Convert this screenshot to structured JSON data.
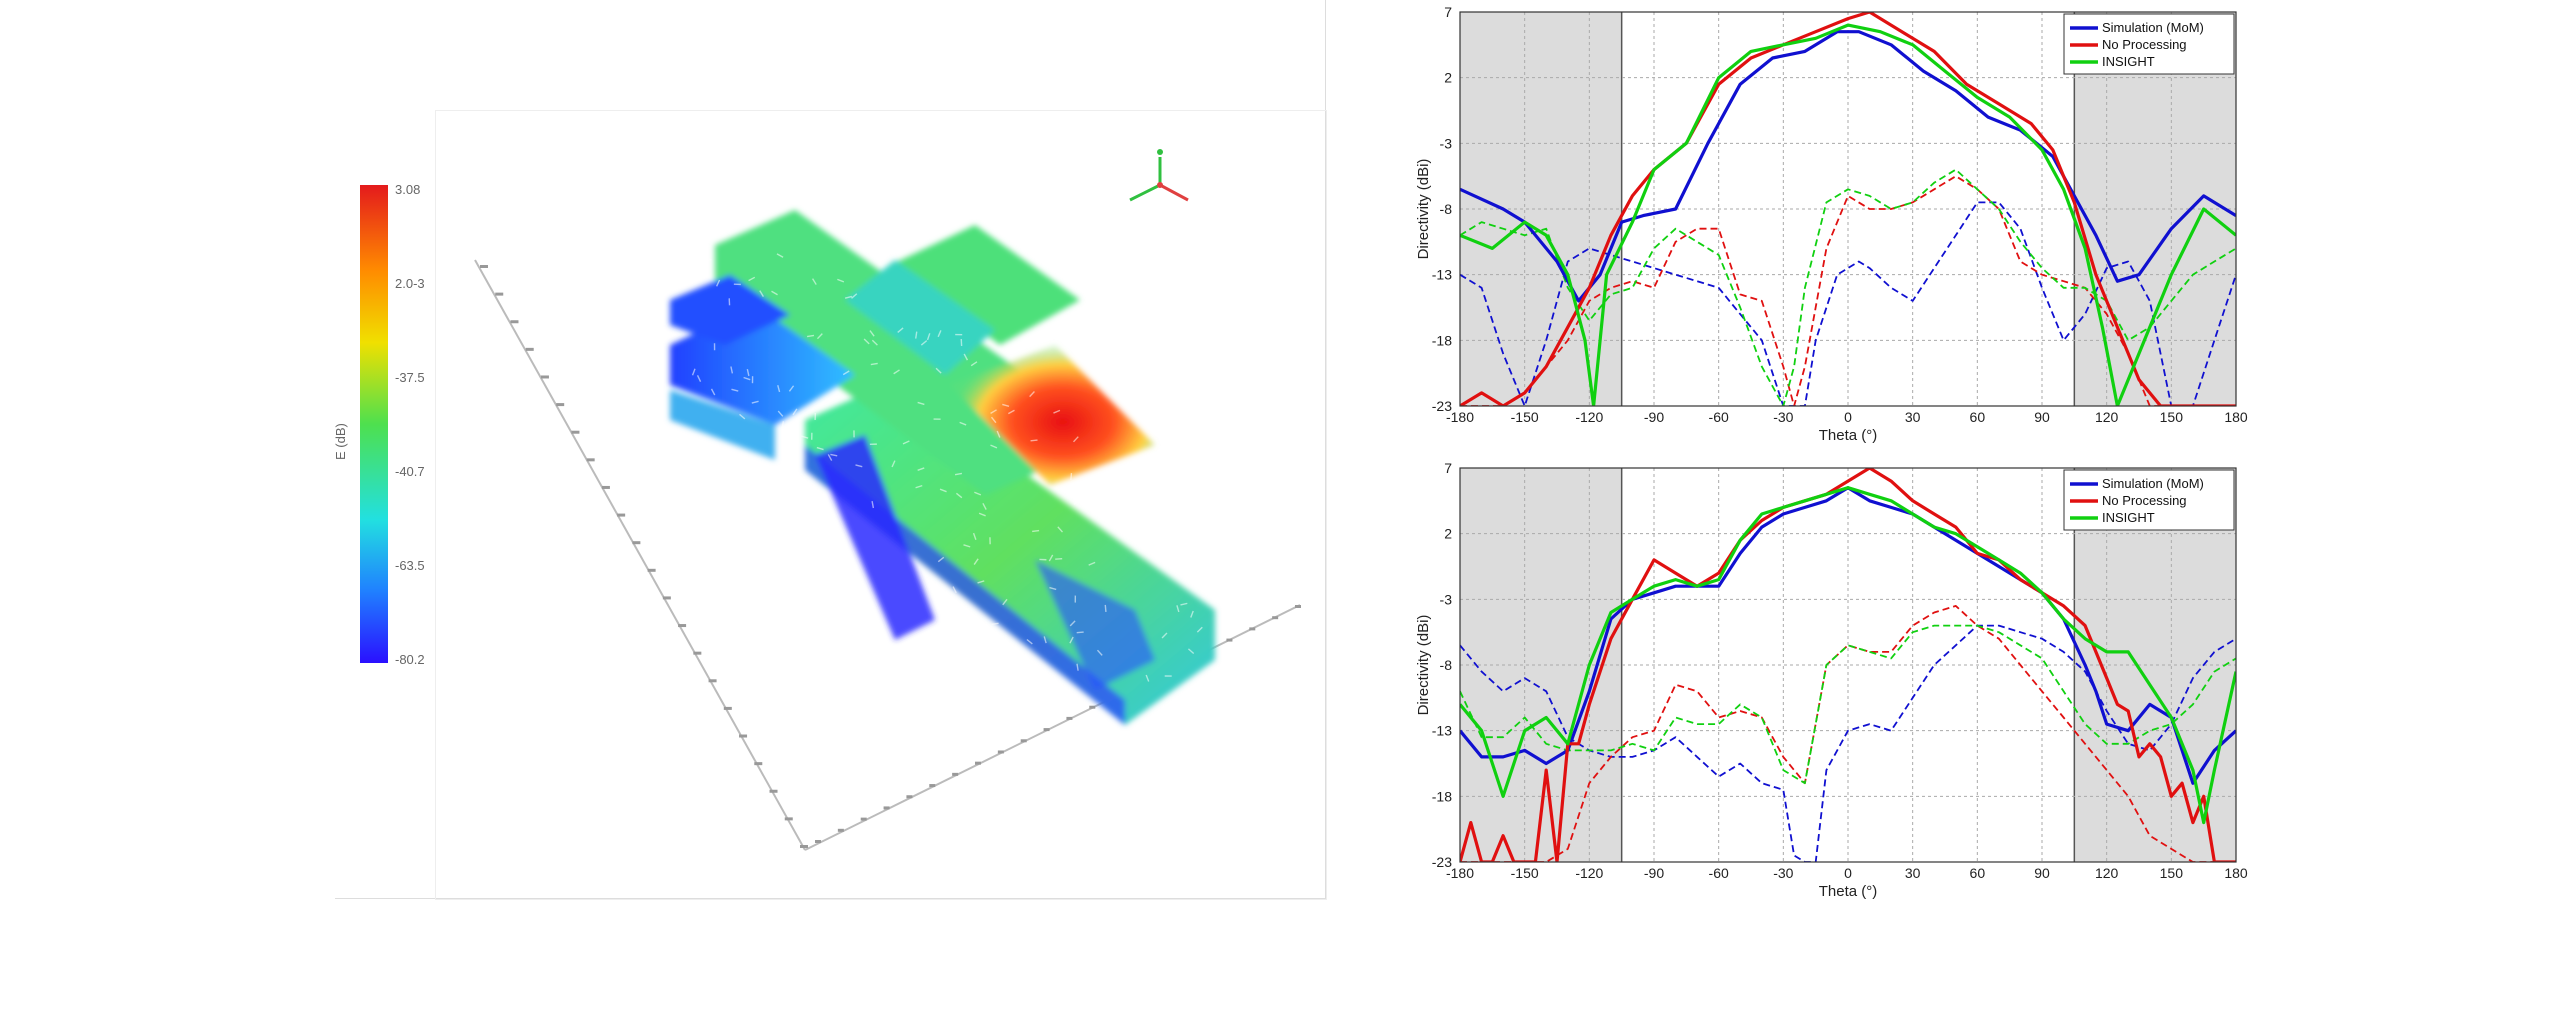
{
  "colorbar": {
    "labels": [
      "3.08",
      "2.0-3",
      "-37.5",
      "-40.7",
      "-63.5",
      "-80.2"
    ],
    "side_label": "E (dB)",
    "colors": [
      "#d7191c",
      "#fdae61",
      "#a6d96a",
      "#1de9b6",
      "#2b83ba",
      "#2020ff"
    ]
  },
  "icons": {
    "axes_triad": "xyz-axes-icon"
  },
  "chart_data": [
    {
      "type": "line",
      "title": "",
      "xlabel": "Theta (°)",
      "ylabel": "Directivity (dBi)",
      "xlim": [
        -180,
        180
      ],
      "ylim": [
        -23,
        7
      ],
      "xticks": [
        -180,
        -150,
        -120,
        -90,
        -60,
        -30,
        0,
        30,
        60,
        90,
        120,
        150,
        180
      ],
      "yticks": [
        7,
        2,
        -3,
        -8,
        -13,
        -18,
        -23
      ],
      "grid": true,
      "legend_position": "top-right",
      "shaded_regions": [
        [
          -180,
          -105
        ],
        [
          105,
          180
        ]
      ],
      "legend": [
        "Simulation (MoM)",
        "No Processing",
        "INSIGHT"
      ],
      "series": [
        {
          "name": "Simulation (MoM)",
          "style": "solid",
          "color": "#1010d0",
          "x": [
            -180,
            -160,
            -150,
            -135,
            -125,
            -115,
            -105,
            -95,
            -80,
            -65,
            -50,
            -35,
            -20,
            -5,
            5,
            20,
            35,
            50,
            65,
            80,
            95,
            105,
            115,
            125,
            135,
            150,
            165,
            180
          ],
          "y": [
            -6.5,
            -8,
            -9,
            -12,
            -15,
            -13,
            -9,
            -8.5,
            -8,
            -3,
            1.5,
            3.5,
            4,
            5.5,
            5.5,
            4.5,
            2.5,
            1,
            -1,
            -2,
            -4,
            -7,
            -10,
            -13.5,
            -13,
            -9.5,
            -7,
            -8.5
          ]
        },
        {
          "name": "No Processing",
          "style": "solid",
          "color": "#e01010",
          "x": [
            -180,
            -170,
            -160,
            -150,
            -140,
            -130,
            -120,
            -110,
            -100,
            -90,
            -75,
            -60,
            -45,
            -30,
            -15,
            0,
            10,
            25,
            40,
            55,
            70,
            85,
            95,
            105,
            115,
            125,
            135,
            145,
            155,
            165,
            180
          ],
          "y": [
            -23,
            -22,
            -23,
            -22,
            -20,
            -17,
            -14,
            -10,
            -7,
            -5,
            -3,
            1.5,
            3.5,
            4.5,
            5.5,
            6.5,
            7,
            5.5,
            4,
            1.5,
            0,
            -1.5,
            -3.5,
            -7.5,
            -13,
            -17,
            -21,
            -23,
            -23,
            -23,
            -23
          ]
        },
        {
          "name": "INSIGHT",
          "style": "solid",
          "color": "#10d010",
          "x": [
            -180,
            -165,
            -150,
            -140,
            -130,
            -122,
            -118,
            -112,
            -100,
            -90,
            -75,
            -60,
            -45,
            -30,
            -15,
            0,
            15,
            30,
            45,
            60,
            75,
            90,
            100,
            110,
            118,
            125,
            135,
            150,
            165,
            180
          ],
          "y": [
            -10,
            -11,
            -9,
            -10,
            -13,
            -18,
            -23,
            -13,
            -9,
            -5,
            -3,
            2,
            4,
            4.5,
            5,
            6,
            5.5,
            4.5,
            2.5,
            0.5,
            -1,
            -3.5,
            -6.5,
            -11,
            -17,
            -23,
            -19,
            -13,
            -8,
            -10
          ]
        },
        {
          "name": "",
          "style": "dashed",
          "color": "#1010d0",
          "x": [
            -180,
            -170,
            -160,
            -150,
            -140,
            -130,
            -120,
            -110,
            -100,
            -90,
            -80,
            -70,
            -60,
            -50,
            -40,
            -30,
            -25,
            -20,
            -15,
            -5,
            5,
            10,
            20,
            30,
            40,
            50,
            60,
            70,
            80,
            90,
            100,
            110,
            120,
            130,
            140,
            150,
            160,
            170,
            180
          ],
          "y": [
            -13,
            -14,
            -19,
            -23,
            -18,
            -12,
            -11,
            -11.5,
            -12,
            -12.5,
            -13,
            -13.5,
            -14,
            -16,
            -18,
            -23,
            -23,
            -23,
            -18,
            -13,
            -12,
            -12.5,
            -14,
            -15,
            -12.5,
            -10,
            -7.5,
            -7.5,
            -9.5,
            -14,
            -18,
            -16,
            -12.5,
            -12,
            -15,
            -23,
            -23,
            -18,
            -13
          ]
        },
        {
          "name": "",
          "style": "dashed",
          "color": "#e01010",
          "x": [
            -180,
            -160,
            -150,
            -140,
            -130,
            -120,
            -110,
            -100,
            -90,
            -80,
            -70,
            -60,
            -50,
            -40,
            -30,
            -25,
            -20,
            -10,
            0,
            10,
            20,
            30,
            40,
            50,
            60,
            70,
            80,
            90,
            100,
            110,
            120,
            130,
            140,
            150,
            160,
            170,
            180
          ],
          "y": [
            -23,
            -23,
            -22,
            -20,
            -18,
            -15,
            -14,
            -13.5,
            -14,
            -10.5,
            -9.5,
            -9.5,
            -14.5,
            -15,
            -20,
            -23,
            -20,
            -11,
            -7,
            -8,
            -8,
            -7.5,
            -6.5,
            -5.5,
            -6.5,
            -8,
            -12,
            -13,
            -13.5,
            -14,
            -16,
            -19,
            -23,
            -23,
            -23,
            -23,
            -23
          ]
        },
        {
          "name": "",
          "style": "dashed",
          "color": "#10d010",
          "x": [
            -180,
            -170,
            -160,
            -150,
            -140,
            -130,
            -120,
            -110,
            -100,
            -90,
            -80,
            -70,
            -60,
            -50,
            -40,
            -30,
            -25,
            -20,
            -10,
            0,
            10,
            20,
            30,
            40,
            50,
            60,
            70,
            80,
            90,
            100,
            110,
            120,
            130,
            140,
            150,
            160,
            170,
            180
          ],
          "y": [
            -10,
            -9,
            -9.5,
            -10,
            -9.5,
            -14,
            -16.5,
            -14.5,
            -14,
            -11,
            -9.5,
            -10.5,
            -11.5,
            -15.5,
            -20,
            -23,
            -20,
            -14,
            -7.5,
            -6.5,
            -7,
            -8,
            -7.5,
            -6,
            -5,
            -6.5,
            -8,
            -10.5,
            -12.5,
            -14,
            -14,
            -15,
            -18,
            -17,
            -15,
            -13,
            -12,
            -11
          ]
        }
      ]
    },
    {
      "type": "line",
      "title": "",
      "xlabel": "Theta (°)",
      "ylabel": "Directivity (dBi)",
      "xlim": [
        -180,
        180
      ],
      "ylim": [
        -23,
        7
      ],
      "xticks": [
        -180,
        -150,
        -120,
        -90,
        -60,
        -30,
        0,
        30,
        60,
        90,
        120,
        150,
        180
      ],
      "yticks": [
        7,
        2,
        -3,
        -8,
        -13,
        -18,
        -23
      ],
      "grid": true,
      "legend_position": "top-right",
      "shaded_regions": [
        [
          -180,
          -105
        ],
        [
          105,
          180
        ]
      ],
      "legend": [
        "Simulation (MoM)",
        "No Processing",
        "INSIGHT"
      ],
      "series": [
        {
          "name": "Simulation (MoM)",
          "style": "solid",
          "color": "#1010d0",
          "x": [
            -180,
            -170,
            -160,
            -150,
            -140,
            -130,
            -120,
            -110,
            -100,
            -90,
            -80,
            -70,
            -60,
            -50,
            -40,
            -30,
            -20,
            -10,
            0,
            10,
            20,
            30,
            40,
            50,
            60,
            70,
            80,
            90,
            100,
            110,
            115,
            120,
            130,
            140,
            150,
            160,
            170,
            180
          ],
          "y": [
            -13,
            -15,
            -15,
            -14.5,
            -15.5,
            -14.5,
            -10,
            -4.5,
            -3,
            -2.5,
            -2,
            -2,
            -2,
            0.5,
            2.5,
            3.5,
            4,
            4.5,
            5.5,
            4.5,
            4,
            3.5,
            2.5,
            1.5,
            0.5,
            -0.5,
            -1.5,
            -2.5,
            -4.5,
            -8,
            -10,
            -12.5,
            -13,
            -11,
            -12,
            -17,
            -14.5,
            -13
          ]
        },
        {
          "name": "No Processing",
          "style": "solid",
          "color": "#e01010",
          "x": [
            -180,
            -175,
            -170,
            -165,
            -160,
            -155,
            -150,
            -145,
            -140,
            -135,
            -130,
            -125,
            -120,
            -110,
            -100,
            -90,
            -80,
            -70,
            -60,
            -50,
            -40,
            -30,
            -20,
            -10,
            0,
            10,
            20,
            30,
            40,
            50,
            60,
            70,
            80,
            90,
            100,
            110,
            120,
            125,
            130,
            135,
            140,
            145,
            150,
            155,
            160,
            165,
            170,
            175,
            180
          ],
          "y": [
            -23,
            -20,
            -23,
            -23,
            -21,
            -23,
            -23,
            -23,
            -16,
            -23,
            -14,
            -14,
            -11,
            -6,
            -3,
            0,
            -1,
            -2,
            -1,
            1.5,
            3,
            4,
            4.5,
            5,
            6,
            7,
            6,
            4.5,
            3.5,
            2.5,
            0.5,
            0,
            -1.5,
            -2.5,
            -3.5,
            -5,
            -9,
            -11,
            -11.5,
            -15,
            -14,
            -15,
            -18,
            -17,
            -20,
            -18,
            -23,
            -23,
            -23
          ]
        },
        {
          "name": "INSIGHT",
          "style": "solid",
          "color": "#10d010",
          "x": [
            -180,
            -170,
            -160,
            -150,
            -140,
            -130,
            -120,
            -110,
            -100,
            -90,
            -80,
            -70,
            -60,
            -50,
            -40,
            -30,
            -20,
            -10,
            0,
            10,
            20,
            30,
            40,
            50,
            60,
            70,
            80,
            90,
            100,
            110,
            120,
            130,
            140,
            150,
            160,
            165,
            170,
            180
          ],
          "y": [
            -11,
            -13,
            -18,
            -13,
            -12,
            -14,
            -8,
            -4,
            -3,
            -2,
            -1.5,
            -2,
            -1.5,
            1.5,
            3.5,
            4,
            4.5,
            5,
            5.5,
            5,
            4.5,
            3.5,
            2.5,
            2,
            1,
            0,
            -1,
            -2.5,
            -4.5,
            -6,
            -7,
            -7,
            -9.5,
            -12,
            -16,
            -20,
            -16,
            -8.5
          ]
        },
        {
          "name": "",
          "style": "dashed",
          "color": "#1010d0",
          "x": [
            -180,
            -170,
            -160,
            -150,
            -140,
            -130,
            -120,
            -110,
            -100,
            -90,
            -80,
            -70,
            -60,
            -50,
            -40,
            -30,
            -25,
            -20,
            -15,
            -10,
            0,
            10,
            20,
            30,
            40,
            50,
            60,
            70,
            80,
            90,
            100,
            110,
            120,
            130,
            140,
            150,
            160,
            170,
            180
          ],
          "y": [
            -6.5,
            -8.5,
            -10,
            -9,
            -10,
            -13.5,
            -14.5,
            -15,
            -15,
            -14.5,
            -13.5,
            -15,
            -16.5,
            -15.5,
            -17,
            -17.5,
            -22.5,
            -23,
            -23,
            -16,
            -13,
            -12.5,
            -13,
            -10.5,
            -8,
            -6.5,
            -5,
            -5,
            -5.5,
            -6,
            -7,
            -8.5,
            -11.5,
            -14,
            -14.5,
            -12.5,
            -9,
            -7,
            -6
          ]
        },
        {
          "name": "",
          "style": "dashed",
          "color": "#e01010",
          "x": [
            -180,
            -170,
            -160,
            -150,
            -140,
            -130,
            -120,
            -110,
            -100,
            -90,
            -80,
            -70,
            -60,
            -50,
            -40,
            -30,
            -20,
            -10,
            0,
            10,
            20,
            30,
            40,
            50,
            60,
            70,
            80,
            90,
            100,
            110,
            120,
            130,
            140,
            150,
            160,
            170,
            180
          ],
          "y": [
            -23,
            -23,
            -23,
            -23,
            -23,
            -22,
            -17,
            -15,
            -13.5,
            -13,
            -9.5,
            -10,
            -12,
            -11.5,
            -12,
            -15,
            -17,
            -8,
            -6.5,
            -7,
            -7,
            -5,
            -4,
            -3.5,
            -5,
            -6,
            -8,
            -10,
            -12,
            -14,
            -16,
            -18,
            -21,
            -22,
            -23,
            -23,
            -23
          ]
        },
        {
          "name": "",
          "style": "dashed",
          "color": "#10d010",
          "x": [
            -180,
            -170,
            -160,
            -150,
            -140,
            -130,
            -120,
            -110,
            -100,
            -90,
            -80,
            -70,
            -60,
            -50,
            -40,
            -30,
            -20,
            -10,
            0,
            10,
            20,
            30,
            40,
            50,
            60,
            70,
            80,
            90,
            100,
            110,
            120,
            130,
            140,
            150,
            160,
            170,
            180
          ],
          "y": [
            -10,
            -13.5,
            -13.5,
            -12,
            -14,
            -14.5,
            -14.5,
            -14.5,
            -14,
            -14.5,
            -12,
            -12.5,
            -12.5,
            -11,
            -12,
            -16,
            -17,
            -8,
            -6.5,
            -7,
            -7.5,
            -5.5,
            -5,
            -5,
            -5,
            -5.5,
            -6.5,
            -7.5,
            -10,
            -12.5,
            -14,
            -14,
            -13,
            -12.5,
            -11,
            -8.5,
            -7.5
          ]
        }
      ]
    }
  ]
}
